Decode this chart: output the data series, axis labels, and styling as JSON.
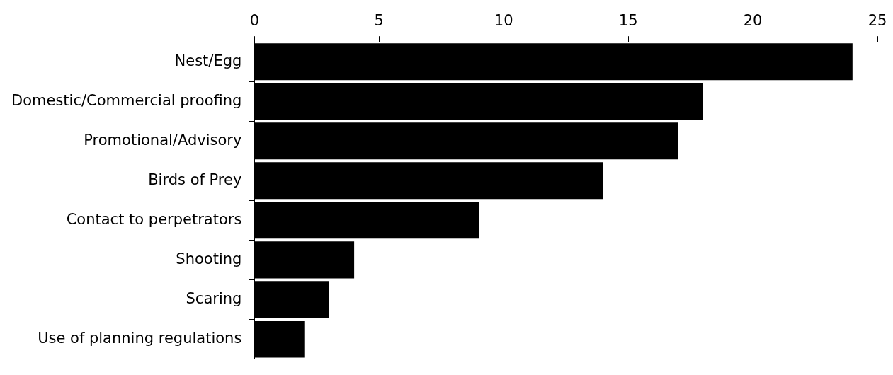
{
  "chart_data": {
    "type": "bar",
    "orientation": "horizontal",
    "categories": [
      "Nest/Egg",
      "Domestic/Commercial proofing",
      "Promotional/Advisory",
      "Birds of Prey",
      "Contact to perpetrators",
      "Shooting",
      "Scaring",
      "Use of planning regulations"
    ],
    "values": [
      24,
      18,
      17,
      14,
      9,
      4,
      3,
      2
    ],
    "color": "#000000",
    "xlim": [
      0,
      25
    ],
    "xticks": [
      0,
      5,
      10,
      15,
      20,
      25
    ],
    "grid": false,
    "legend": false
  }
}
